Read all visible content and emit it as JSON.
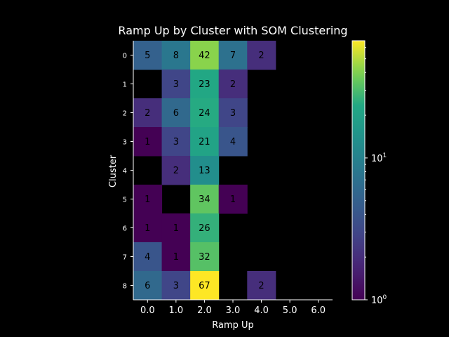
{
  "chart_data": {
    "type": "heatmap",
    "title": "Ramp Up by Cluster with SOM Clustering",
    "xlabel": "Ramp Up",
    "ylabel": "Cluster",
    "x_categories": [
      "0.0",
      "1.0",
      "2.0",
      "3.0",
      "4.0",
      "5.0",
      "6.0"
    ],
    "y_categories": [
      "0",
      "1",
      "2",
      "3",
      "4",
      "5",
      "6",
      "7",
      "8"
    ],
    "values": [
      [
        5,
        8,
        42,
        7,
        2,
        null,
        null
      ],
      [
        null,
        3,
        23,
        2,
        null,
        null,
        null
      ],
      [
        2,
        6,
        24,
        3,
        null,
        null,
        null
      ],
      [
        1,
        3,
        21,
        4,
        null,
        null,
        null
      ],
      [
        null,
        2,
        13,
        null,
        null,
        null,
        null
      ],
      [
        1,
        null,
        34,
        1,
        null,
        null,
        null
      ],
      [
        1,
        1,
        26,
        null,
        null,
        null,
        null
      ],
      [
        4,
        1,
        32,
        null,
        null,
        null,
        null
      ],
      [
        6,
        3,
        67,
        null,
        2,
        null,
        null
      ]
    ],
    "colormap": "viridis",
    "color_scale": "log",
    "colorbar": {
      "range": [
        1,
        67
      ],
      "tick_labels": [
        {
          "base": "10",
          "exp": "0",
          "value": 1
        },
        {
          "base": "10",
          "exp": "1",
          "value": 10
        }
      ]
    },
    "missing_color": "#000000",
    "background": "#000000"
  }
}
